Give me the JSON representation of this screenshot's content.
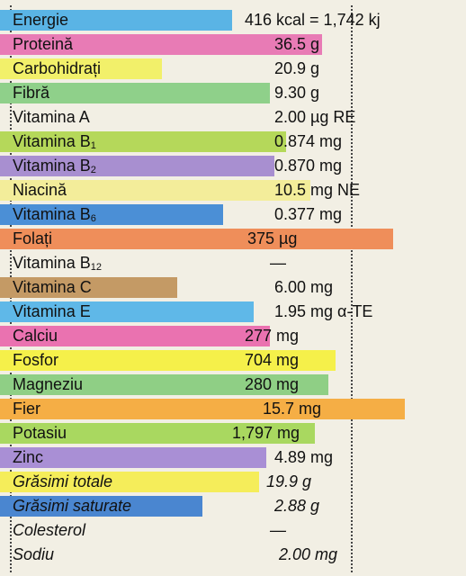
{
  "table": {
    "rows": [
      {
        "label": "Energie",
        "value": "416 kcal = 1,742 kj"
      },
      {
        "label": "Proteină",
        "value": "36.5 g"
      },
      {
        "label": "Carbohidrați",
        "value": "20.9 g"
      },
      {
        "label": "Fibră",
        "value": "9.30 g"
      },
      {
        "label": "Vitamina A",
        "value": "2.00 µg RE"
      },
      {
        "label": "Vitamina B",
        "sub": "1",
        "value": "0.874 mg"
      },
      {
        "label": "Vitamina B",
        "sub": "2",
        "value": "0.870 mg"
      },
      {
        "label": "Niacină",
        "value": "10.5 mg NE"
      },
      {
        "label": "Vitamina B",
        "sub": "6",
        "value": "0.377 mg"
      },
      {
        "label": "Folați",
        "value": "375 µg"
      },
      {
        "label": "Vitamina B",
        "sub": "12",
        "value": "—"
      },
      {
        "label": "Vitamina C",
        "value": "6.00 mg"
      },
      {
        "label": "Vitamina E",
        "value": "1.95 mg α-TE"
      },
      {
        "label": "Calciu",
        "value": "277 mg"
      },
      {
        "label": "Fosfor",
        "value": "704 mg"
      },
      {
        "label": "Magneziu",
        "value": "280 mg"
      },
      {
        "label": "Fier",
        "value": "15.7 mg"
      },
      {
        "label": "Potasiu",
        "value": "1,797 mg"
      },
      {
        "label": "Zinc",
        "value": "4.89 mg"
      },
      {
        "label": "Grăsimi totale",
        "value": "19.9 g"
      },
      {
        "label": "Grăsimi saturate",
        "value": "2.88 g"
      },
      {
        "label": "Colesterol",
        "value": "—"
      },
      {
        "label": "Sodiu",
        "value": "2.00 mg"
      }
    ]
  }
}
